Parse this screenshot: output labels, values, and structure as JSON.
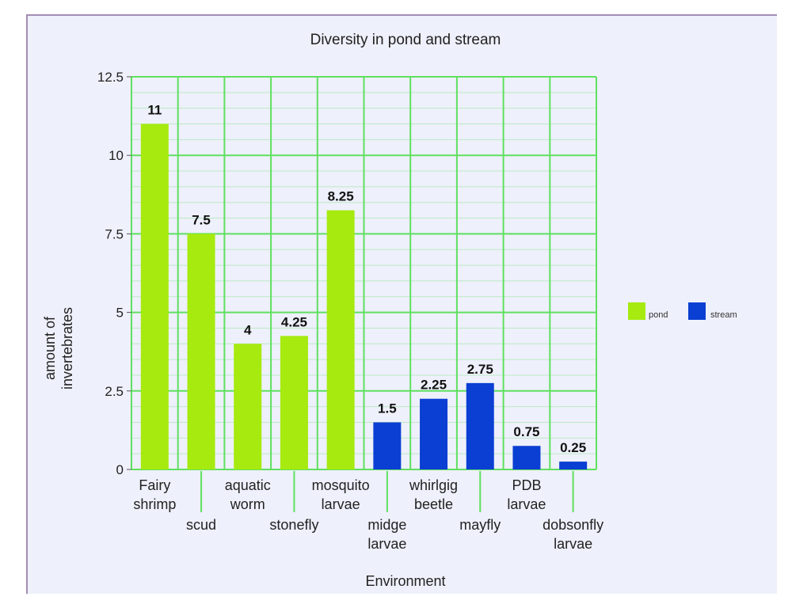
{
  "chart_data": {
    "type": "bar",
    "title": "Diversity in pond and stream",
    "xlabel": "Environment",
    "ylabel": [
      "amount of",
      "invertebrates"
    ],
    "ylim": [
      0,
      12.5
    ],
    "yticks": [
      "0",
      "2.5",
      "5",
      "7.5",
      "10",
      "12.5"
    ],
    "grid": true,
    "legend_position": "right",
    "colors": {
      "pond": "#a6ea0f",
      "stream": "#0b3fd3",
      "grid": "#5fe05f"
    },
    "categories": [
      {
        "label": [
          "Fairy",
          "shrimp"
        ],
        "row": 0
      },
      {
        "label": [
          "scud"
        ],
        "row": 1
      },
      {
        "label": [
          "aquatic",
          "worm"
        ],
        "row": 0
      },
      {
        "label": [
          "stonefly"
        ],
        "row": 1
      },
      {
        "label": [
          "mosquito",
          "larvae"
        ],
        "row": 0
      },
      {
        "label": [
          "midge",
          "larvae"
        ],
        "row": 1
      },
      {
        "label": [
          "whirlgig",
          "beetle"
        ],
        "row": 0
      },
      {
        "label": [
          "mayfly"
        ],
        "row": 1
      },
      {
        "label": [
          "PDB",
          "larvae"
        ],
        "row": 0
      },
      {
        "label": [
          "dobsonfly",
          "larvae"
        ],
        "row": 1
      }
    ],
    "series": [
      {
        "name": "pond",
        "values": [
          11,
          7.5,
          4,
          4.25,
          8.25,
          null,
          null,
          null,
          null,
          null
        ]
      },
      {
        "name": "stream",
        "values": [
          null,
          null,
          null,
          null,
          null,
          1.5,
          2.25,
          2.75,
          0.75,
          0.25
        ]
      }
    ],
    "data_labels": [
      "11",
      "7.5",
      "4",
      "4.25",
      "8.25",
      "1.5",
      "2.25",
      "2.75",
      "0.75",
      "0.25"
    ]
  }
}
